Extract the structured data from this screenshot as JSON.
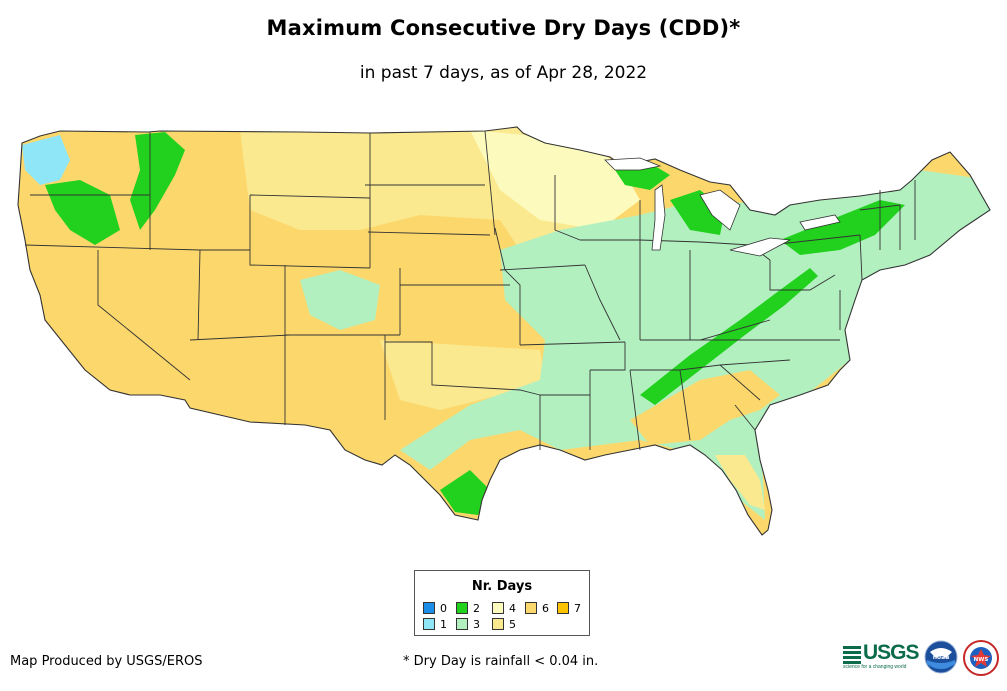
{
  "title": "Maximum Consecutive Dry Days (CDD)*",
  "subtitle": "in past 7 days, as of Apr 28, 2022",
  "legend": {
    "title": "Nr. Days",
    "items": [
      {
        "label": "0",
        "color": "#1b8fe8"
      },
      {
        "label": "1",
        "color": "#8fe6f6"
      },
      {
        "label": "2",
        "color": "#22d11e"
      },
      {
        "label": "3",
        "color": "#b2f0c0"
      },
      {
        "label": "4",
        "color": "#fcfbbd"
      },
      {
        "label": "5",
        "color": "#fbe990"
      },
      {
        "label": "6",
        "color": "#fcd86c"
      },
      {
        "label": "7",
        "color": "#fbc201"
      }
    ]
  },
  "footer": {
    "credit": "Map Produced by USGS/EROS",
    "note": "* Dry Day is rainfall < 0.04 in."
  },
  "logos": {
    "usgs_text": "USGS",
    "usgs_tagline": "science for a changing world",
    "noaa_text": "noaa",
    "nws_text": "NWS"
  },
  "map": {
    "region": "conterminous-united-states",
    "dominant_by_region": [
      {
        "region": "West / Southwest",
        "days": 6
      },
      {
        "region": "Great Plains",
        "days": 5
      },
      {
        "region": "Midwest and East",
        "days": 3
      },
      {
        "region": "Pacific Northwest coast",
        "days": 1
      }
    ]
  }
}
